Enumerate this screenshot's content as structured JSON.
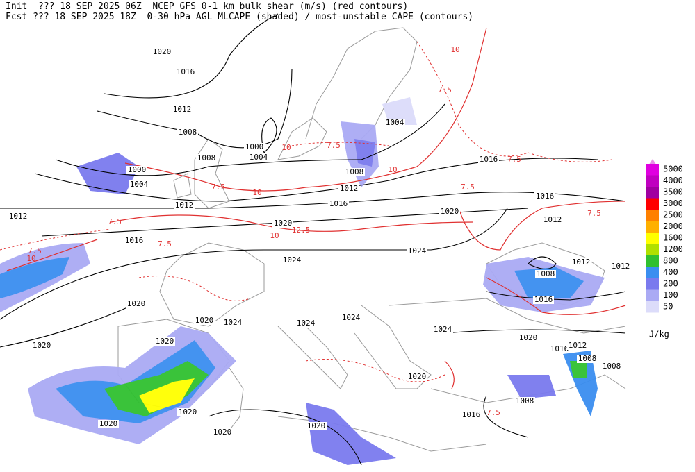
{
  "header": {
    "line1": "Init  ??? 18 SEP 2025 06Z  NCEP GFS 0-1 km bulk shear (m/s) (red contours)",
    "line2": "Fcst ??? 18 SEP 2025 18Z  0-30 hPa AGL MLCAPE (shaded) / most-unstable CAPE (contours)"
  },
  "legend": {
    "unit": "J/kg",
    "items": [
      {
        "label": 5000,
        "color": "#e000e0"
      },
      {
        "label": 4000,
        "color": "#c000c0"
      },
      {
        "label": 3500,
        "color": "#a000a0"
      },
      {
        "label": 3000,
        "color": "#ff0000"
      },
      {
        "label": 2500,
        "color": "#ff8000"
      },
      {
        "label": 2000,
        "color": "#ffb000"
      },
      {
        "label": 1600,
        "color": "#ffff00"
      },
      {
        "label": 1200,
        "color": "#b0e000"
      },
      {
        "label": 800,
        "color": "#30c030"
      },
      {
        "label": 400,
        "color": "#3a8ef0"
      },
      {
        "label": 200,
        "color": "#7a7aee"
      },
      {
        "label": 100,
        "color": "#aaaaf4"
      },
      {
        "label": 50,
        "color": "#dcdcfa"
      }
    ]
  },
  "isobar_labels": [
    1020,
    1016,
    1012,
    1008,
    1000,
    1004,
    1000,
    1004,
    1012,
    1012,
    1016,
    1008,
    1004,
    1008,
    1012,
    1016,
    1020,
    1020,
    1016,
    1016,
    1012,
    1024,
    1024,
    1012,
    1012,
    1008,
    1016,
    1020,
    1020,
    1024,
    1024,
    1024,
    1024,
    1020,
    1020,
    1020,
    1016,
    1012,
    1008,
    1008,
    1020,
    1008,
    1016,
    1020,
    1020,
    1020,
    1020
  ],
  "shear_labels": [
    10,
    7.5,
    10,
    7.5,
    10,
    7.5,
    10,
    7.5,
    7.5,
    10,
    7.5,
    12.5,
    10,
    7.5,
    7.5,
    7.5,
    7.5
  ]
}
